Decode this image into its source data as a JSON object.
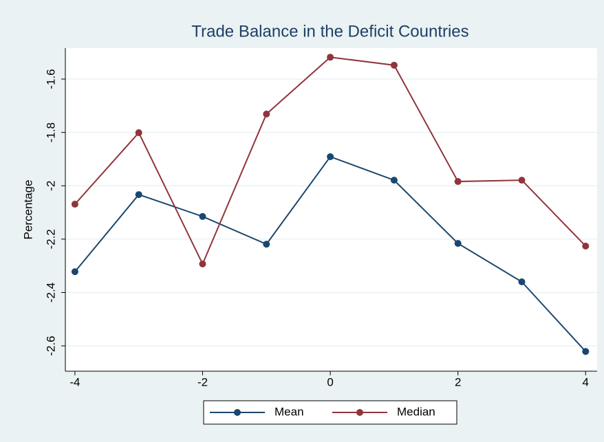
{
  "chart_data": {
    "type": "line",
    "title": "Trade Balance in the Deficit Countries",
    "y_label": "Percentage",
    "x": [
      -4,
      -3,
      -2,
      -1,
      0,
      1,
      2,
      3,
      4
    ],
    "series": [
      {
        "name": "Mean",
        "color": "#1a476f",
        "values": [
          -2.322,
          -2.033,
          -2.115,
          -2.219,
          -1.891,
          -1.979,
          -2.216,
          -2.36,
          -2.621
        ]
      },
      {
        "name": "Median",
        "color": "#90353b",
        "values": [
          -2.069,
          -1.801,
          -2.293,
          -1.731,
          -1.518,
          -1.548,
          -1.984,
          -1.979,
          -2.226
        ]
      }
    ],
    "xlim": [
      -4.15,
      4.18
    ],
    "xticks": [
      -4,
      -2,
      0,
      2,
      4
    ],
    "ylim": [
      -2.695,
      -1.484
    ],
    "yticks": [
      -1.6,
      -1.8,
      -2,
      -2.2,
      -2.4,
      -2.6
    ],
    "grid": true,
    "legend": "bottom"
  }
}
